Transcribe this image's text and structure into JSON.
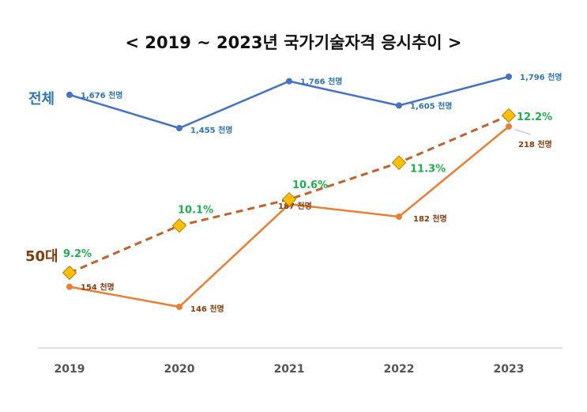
{
  "chart_data": {
    "type": "line",
    "title": "< 2019 ~ 2023년 국가기술자격 응시추이 >",
    "categories": [
      "2019",
      "2020",
      "2021",
      "2022",
      "2023"
    ],
    "grid": false,
    "series": [
      {
        "name": "전체",
        "values": [
          1676,
          1455,
          1766,
          1605,
          1796
        ],
        "labels": [
          "1,676 천명",
          "1,455 천명",
          "1,766 천명",
          "1,605 천명",
          "1,796 천명"
        ],
        "color": "#4472C4",
        "style": "solid"
      },
      {
        "name": "50대",
        "values": [
          154,
          146,
          187,
          182,
          218
        ],
        "labels": [
          "154 천명",
          "146 천명",
          "187 천명",
          "182 천명",
          "218 천명"
        ],
        "color": "#ED7D31",
        "style": "solid"
      },
      {
        "values": [
          9.2,
          10.1,
          10.6,
          11.3,
          12.2
        ],
        "labels": [
          "9.2%",
          "10.1%",
          "10.6%",
          "11.3%",
          "12.2%"
        ],
        "color": "#C0622A",
        "marker_color": "#FFC000",
        "label_color": "#1FAF50",
        "style": "dashed"
      }
    ]
  }
}
